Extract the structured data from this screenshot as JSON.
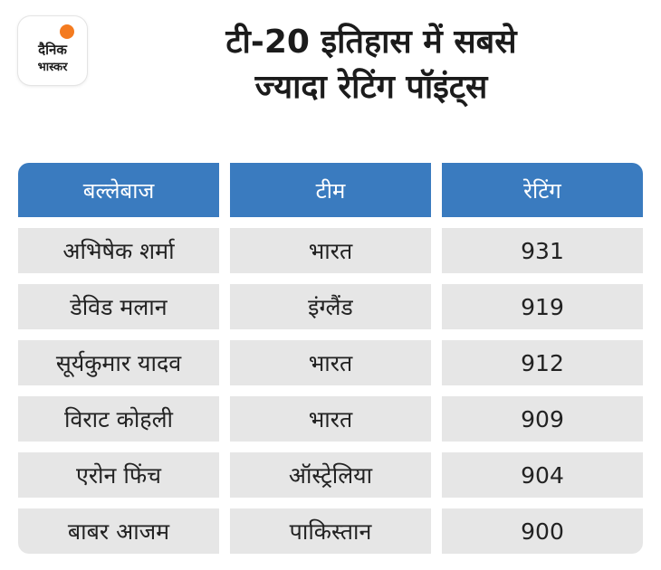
{
  "logo": {
    "line1": "दैनिक",
    "line2": "भास्कर",
    "sun_color": "#f47b20"
  },
  "title": {
    "line1": "टी-20 इतिहास में सबसे",
    "line2": "ज्यादा रेटिंग पॉइंट्स"
  },
  "table": {
    "header_color": "#3a7bbf",
    "row_color": "#e6e6e6",
    "headers": [
      "बल्लेबाज",
      "टीम",
      "रेटिंग"
    ],
    "rows": [
      [
        "अभिषेक शर्मा",
        "भारत",
        "931"
      ],
      [
        "डेविड मलान",
        "इंग्लैंड",
        "919"
      ],
      [
        "सूर्यकुमार यादव",
        "भारत",
        "912"
      ],
      [
        "विराट कोहली",
        "भारत",
        "909"
      ],
      [
        "एरोन फिंच",
        "ऑस्ट्रेलिया",
        "904"
      ],
      [
        "बाबर आजम",
        "पाकिस्तान",
        "900"
      ]
    ]
  }
}
